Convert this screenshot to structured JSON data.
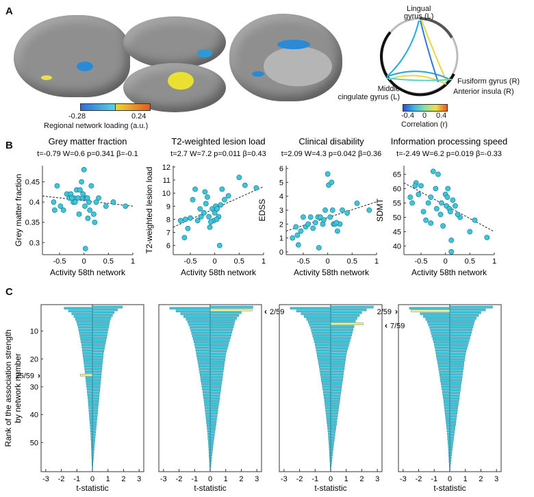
{
  "panels": {
    "a": "A",
    "b": "B",
    "c": "C"
  },
  "colorbar_loading": {
    "min": "-0.28",
    "max": "0.24",
    "label": "Regional network loading (a.u.)"
  },
  "connectogram": {
    "nodes": {
      "lingual": "Lingual\ngyrus (L)",
      "fusiform": "Fusiform gyrus (R)",
      "insula": "Anterior insula (R)",
      "cingulate": "Middle\ncingulate gyrus (L)"
    },
    "colorbar": {
      "ticks": [
        "-0.4",
        "0",
        "0.4"
      ],
      "label": "Correlation (r)"
    }
  },
  "colors": {
    "cyan": "#3cc6dc",
    "yellow": "#f0ec8a",
    "dark": "#222222"
  },
  "scatters": [
    {
      "title": "Grey matter fraction",
      "stats": "t=-0.79 W=0.6 p=0.341 β=-0.1",
      "ylabel": "Grey matter fraction",
      "xlabel": "Activity 58th network",
      "xlim": [
        -0.85,
        1.0
      ],
      "ylim": [
        0.27,
        0.49
      ],
      "xticks": [
        -0.5,
        0,
        0.5,
        1
      ],
      "yticks": [
        0.3,
        0.35,
        0.4,
        0.45
      ],
      "xtick_labels": [
        "-0.5",
        "0",
        "0.5",
        "1"
      ],
      "ytick_labels": [
        "0.3",
        "0.35",
        "0.4",
        "0.45"
      ],
      "fit": [
        [
          -0.85,
          0.415
        ],
        [
          1.0,
          0.39
        ]
      ],
      "x": [
        -0.62,
        -0.55,
        -0.48,
        -0.42,
        -0.35,
        -0.3,
        -0.27,
        -0.22,
        -0.2,
        -0.15,
        -0.12,
        -0.1,
        -0.08,
        -0.05,
        -0.03,
        0.0,
        0.02,
        0.05,
        0.08,
        0.1,
        0.15,
        0.2,
        0.25,
        0.3,
        0.45,
        0.6,
        0.85,
        -0.6,
        -0.25,
        -0.18,
        0.03,
        0.12,
        0.22,
        -0.02,
        0.07
      ],
      "y": [
        0.4,
        0.44,
        0.39,
        0.38,
        0.42,
        0.41,
        0.42,
        0.4,
        0.41,
        0.43,
        0.41,
        0.37,
        0.43,
        0.45,
        0.41,
        0.48,
        0.39,
        0.41,
        0.36,
        0.4,
        0.44,
        0.37,
        0.4,
        0.41,
        0.39,
        0.4,
        0.39,
        0.38,
        0.41,
        0.4,
        0.285,
        0.38,
        0.35,
        0.42,
        0.41
      ]
    },
    {
      "title": "T2-weighted lesion load",
      "stats": "t=2.7 W=7.2 p=0.011 β=0.43",
      "ylabel": "T2-weighted lesion load",
      "xlabel": "Activity 58th network",
      "xlim": [
        -0.85,
        1.0
      ],
      "ylim": [
        5.3,
        12.1
      ],
      "xticks": [
        -0.5,
        0,
        0.5,
        1
      ],
      "yticks": [
        6,
        7,
        8,
        9,
        10,
        11,
        12
      ],
      "xtick_labels": [
        "-0.5",
        "0",
        "0.5",
        "1"
      ],
      "ytick_labels": [
        "6",
        "7",
        "8",
        "9",
        "10",
        "11",
        "12"
      ],
      "fit": [
        [
          -0.85,
          7.4
        ],
        [
          1.0,
          10.5
        ]
      ],
      "x": [
        -0.7,
        -0.62,
        -0.55,
        -0.5,
        -0.45,
        -0.4,
        -0.35,
        -0.3,
        -0.28,
        -0.22,
        -0.2,
        -0.15,
        -0.12,
        -0.1,
        -0.05,
        -0.02,
        0.0,
        0.02,
        0.05,
        0.08,
        0.1,
        0.15,
        0.2,
        0.28,
        0.5,
        0.62,
        0.85,
        -0.6,
        -0.18,
        -0.08,
        0.04,
        0.12
      ],
      "y": [
        7.9,
        6.6,
        7.3,
        8.1,
        9.5,
        10.3,
        7.9,
        8.8,
        8.2,
        8.5,
        10.1,
        9.7,
        8.2,
        7.4,
        8.8,
        7.9,
        8.5,
        9.0,
        8.8,
        8.2,
        6.0,
        10.3,
        9.5,
        9.8,
        11.2,
        10.6,
        10.4,
        8.0,
        9.2,
        7.8,
        8.0,
        9.1
      ]
    },
    {
      "title": "Clinical disability",
      "stats": "t=2.09 W=4.3 p=0.042 β=0.36",
      "ylabel": "EDSS",
      "xlabel": "Activity 58th network",
      "xlim": [
        -0.85,
        1.0
      ],
      "ylim": [
        -0.2,
        6.2
      ],
      "xticks": [
        -0.5,
        0,
        0.5,
        1
      ],
      "yticks": [
        0,
        1,
        2,
        3,
        4,
        5,
        6
      ],
      "xtick_labels": [
        "-0.5",
        "0",
        "0.5",
        "1"
      ],
      "ytick_labels": [
        "0",
        "1",
        "2",
        "3",
        "4",
        "5",
        "6"
      ],
      "fit": [
        [
          -0.85,
          1.5
        ],
        [
          1.0,
          3.6
        ]
      ],
      "x": [
        -0.72,
        -0.65,
        -0.6,
        -0.55,
        -0.5,
        -0.45,
        -0.4,
        -0.35,
        -0.3,
        -0.25,
        -0.2,
        -0.15,
        -0.1,
        -0.05,
        0.0,
        0.02,
        0.05,
        0.08,
        0.1,
        0.12,
        0.15,
        0.2,
        0.25,
        0.3,
        0.4,
        0.6,
        0.85,
        -0.62,
        -0.18,
        -0.08,
        0.18
      ],
      "y": [
        1.0,
        1.8,
        0.5,
        1.5,
        2.5,
        1.8,
        2.0,
        2.5,
        1.7,
        2.1,
        2.5,
        2.5,
        2.0,
        3.0,
        5.6,
        4.8,
        2.5,
        5.0,
        3.0,
        2.0,
        2.0,
        1.5,
        2.0,
        3.0,
        2.8,
        3.5,
        3.0,
        1.2,
        0.3,
        2.3,
        2.1
      ]
    },
    {
      "title": "Information processing speed",
      "stats": "t=-2.49 W=6.2 p=0.019 β=-0.33",
      "ylabel": "SDMT",
      "xlabel": "Activity 58th network",
      "xlim": [
        -0.85,
        1.0
      ],
      "ylim": [
        37,
        68
      ],
      "xticks": [
        -0.5,
        0,
        0.5,
        1
      ],
      "yticks": [
        40,
        45,
        50,
        55,
        60,
        65
      ],
      "xtick_labels": [
        "-0.5",
        "0",
        "0.5",
        "1"
      ],
      "ytick_labels": [
        "40",
        "45",
        "50",
        "55",
        "60",
        "65"
      ],
      "fit": [
        [
          -0.85,
          62.0
        ],
        [
          1.0,
          45.0
        ]
      ],
      "x": [
        -0.72,
        -0.68,
        -0.6,
        -0.55,
        -0.5,
        -0.45,
        -0.4,
        -0.35,
        -0.3,
        -0.25,
        -0.2,
        -0.15,
        -0.1,
        -0.05,
        0.0,
        0.02,
        0.05,
        0.08,
        0.1,
        0.12,
        0.15,
        0.2,
        0.3,
        0.5,
        0.6,
        0.85,
        -0.62,
        -0.3,
        -0.18,
        -0.08,
        0.04,
        0.12,
        0.25
      ],
      "y": [
        57,
        55,
        62,
        58,
        61,
        52,
        49,
        55,
        57,
        66,
        60,
        65,
        51,
        47,
        58,
        54,
        60,
        53,
        52,
        38,
        56,
        54,
        50,
        45,
        49,
        43,
        61,
        48,
        53,
        55,
        57,
        42,
        51
      ]
    }
  ],
  "bar_panels": {
    "ylabel": "Rank of the association strength\nby network number",
    "xlabel": "t-statistic",
    "xlim": [
      -3.3,
      3.3
    ],
    "xticks": [
      -3,
      -2,
      -1,
      0,
      1,
      2,
      3
    ],
    "xtick_labels": [
      "-3",
      "-2",
      "-1",
      "0",
      "1",
      "2",
      "3"
    ],
    "yticks": [
      10,
      20,
      30,
      40,
      50
    ],
    "ytick_labels": [
      "10",
      "20",
      "30",
      "40",
      "50"
    ],
    "n_networks": 59,
    "base_positive": [
      2.75,
      2.3,
      2.0,
      1.85,
      1.7,
      1.6,
      1.55,
      1.5,
      1.45,
      1.4,
      1.35,
      1.3,
      1.25,
      1.2,
      1.15,
      1.1,
      1.05,
      1.0,
      0.98,
      0.95,
      0.92,
      0.9,
      0.88,
      0.85,
      0.82,
      0.8,
      0.78,
      0.75,
      0.72,
      0.7,
      0.68,
      0.65,
      0.62,
      0.6,
      0.58,
      0.55,
      0.52,
      0.5,
      0.48,
      0.45,
      0.42,
      0.4,
      0.38,
      0.35,
      0.33,
      0.3,
      0.28,
      0.25,
      0.23,
      0.2,
      0.18,
      0.16,
      0.14,
      0.12,
      0.1,
      0.08,
      0.06,
      0.04,
      0.02
    ],
    "base_negative": [
      -2.6,
      -2.2,
      -1.9,
      -1.7,
      -1.55,
      -1.45,
      -1.38,
      -1.3,
      -1.25,
      -1.2,
      -1.15,
      -1.1,
      -1.05,
      -1.0,
      -0.97,
      -0.93,
      -0.9,
      -0.87,
      -0.84,
      -0.8,
      -0.77,
      -0.74,
      -0.71,
      -0.68,
      -0.65,
      -0.62,
      -0.6,
      -0.57,
      -0.54,
      -0.51,
      -0.48,
      -0.46,
      -0.43,
      -0.4,
      -0.38,
      -0.36,
      -0.34,
      -0.32,
      -0.3,
      -0.28,
      -0.26,
      -0.24,
      -0.22,
      -0.2,
      -0.18,
      -0.16,
      -0.15,
      -0.14,
      -0.12,
      -0.11,
      -0.1,
      -0.09,
      -0.08,
      -0.07,
      -0.06,
      -0.05,
      -0.04,
      -0.03,
      -0.02
    ],
    "panels": [
      {
        "highlight_rank": 25,
        "highlight_t": -0.79,
        "label": "25/59",
        "arrow": "left",
        "scale": 0.7
      },
      {
        "highlight_rank": 2,
        "highlight_t": 2.7,
        "label": "2/59",
        "arrow": "right",
        "scale": 1.0
      },
      {
        "highlight_rank": 7,
        "highlight_t": 2.09,
        "label": "7/59",
        "arrow": "right",
        "scale": 1.0
      },
      {
        "highlight_rank": 2,
        "highlight_t": -2.49,
        "label": "2/59",
        "arrow": "left",
        "scale": 1.0
      }
    ]
  }
}
